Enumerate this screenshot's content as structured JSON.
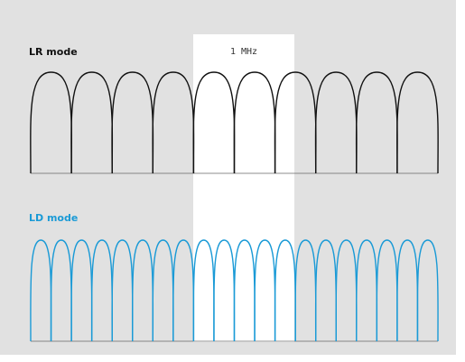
{
  "band_label": "1 MHz",
  "lr_mode": {
    "title": "LR mode",
    "channel_count": 10,
    "color": "#111111"
  },
  "ld_mode": {
    "title": "LD mode",
    "channel_count": 20,
    "color": "#1a9ad6"
  },
  "colors": {
    "background": "#e1e1e1",
    "highlight": "#ffffff",
    "baseline": "#666666"
  }
}
